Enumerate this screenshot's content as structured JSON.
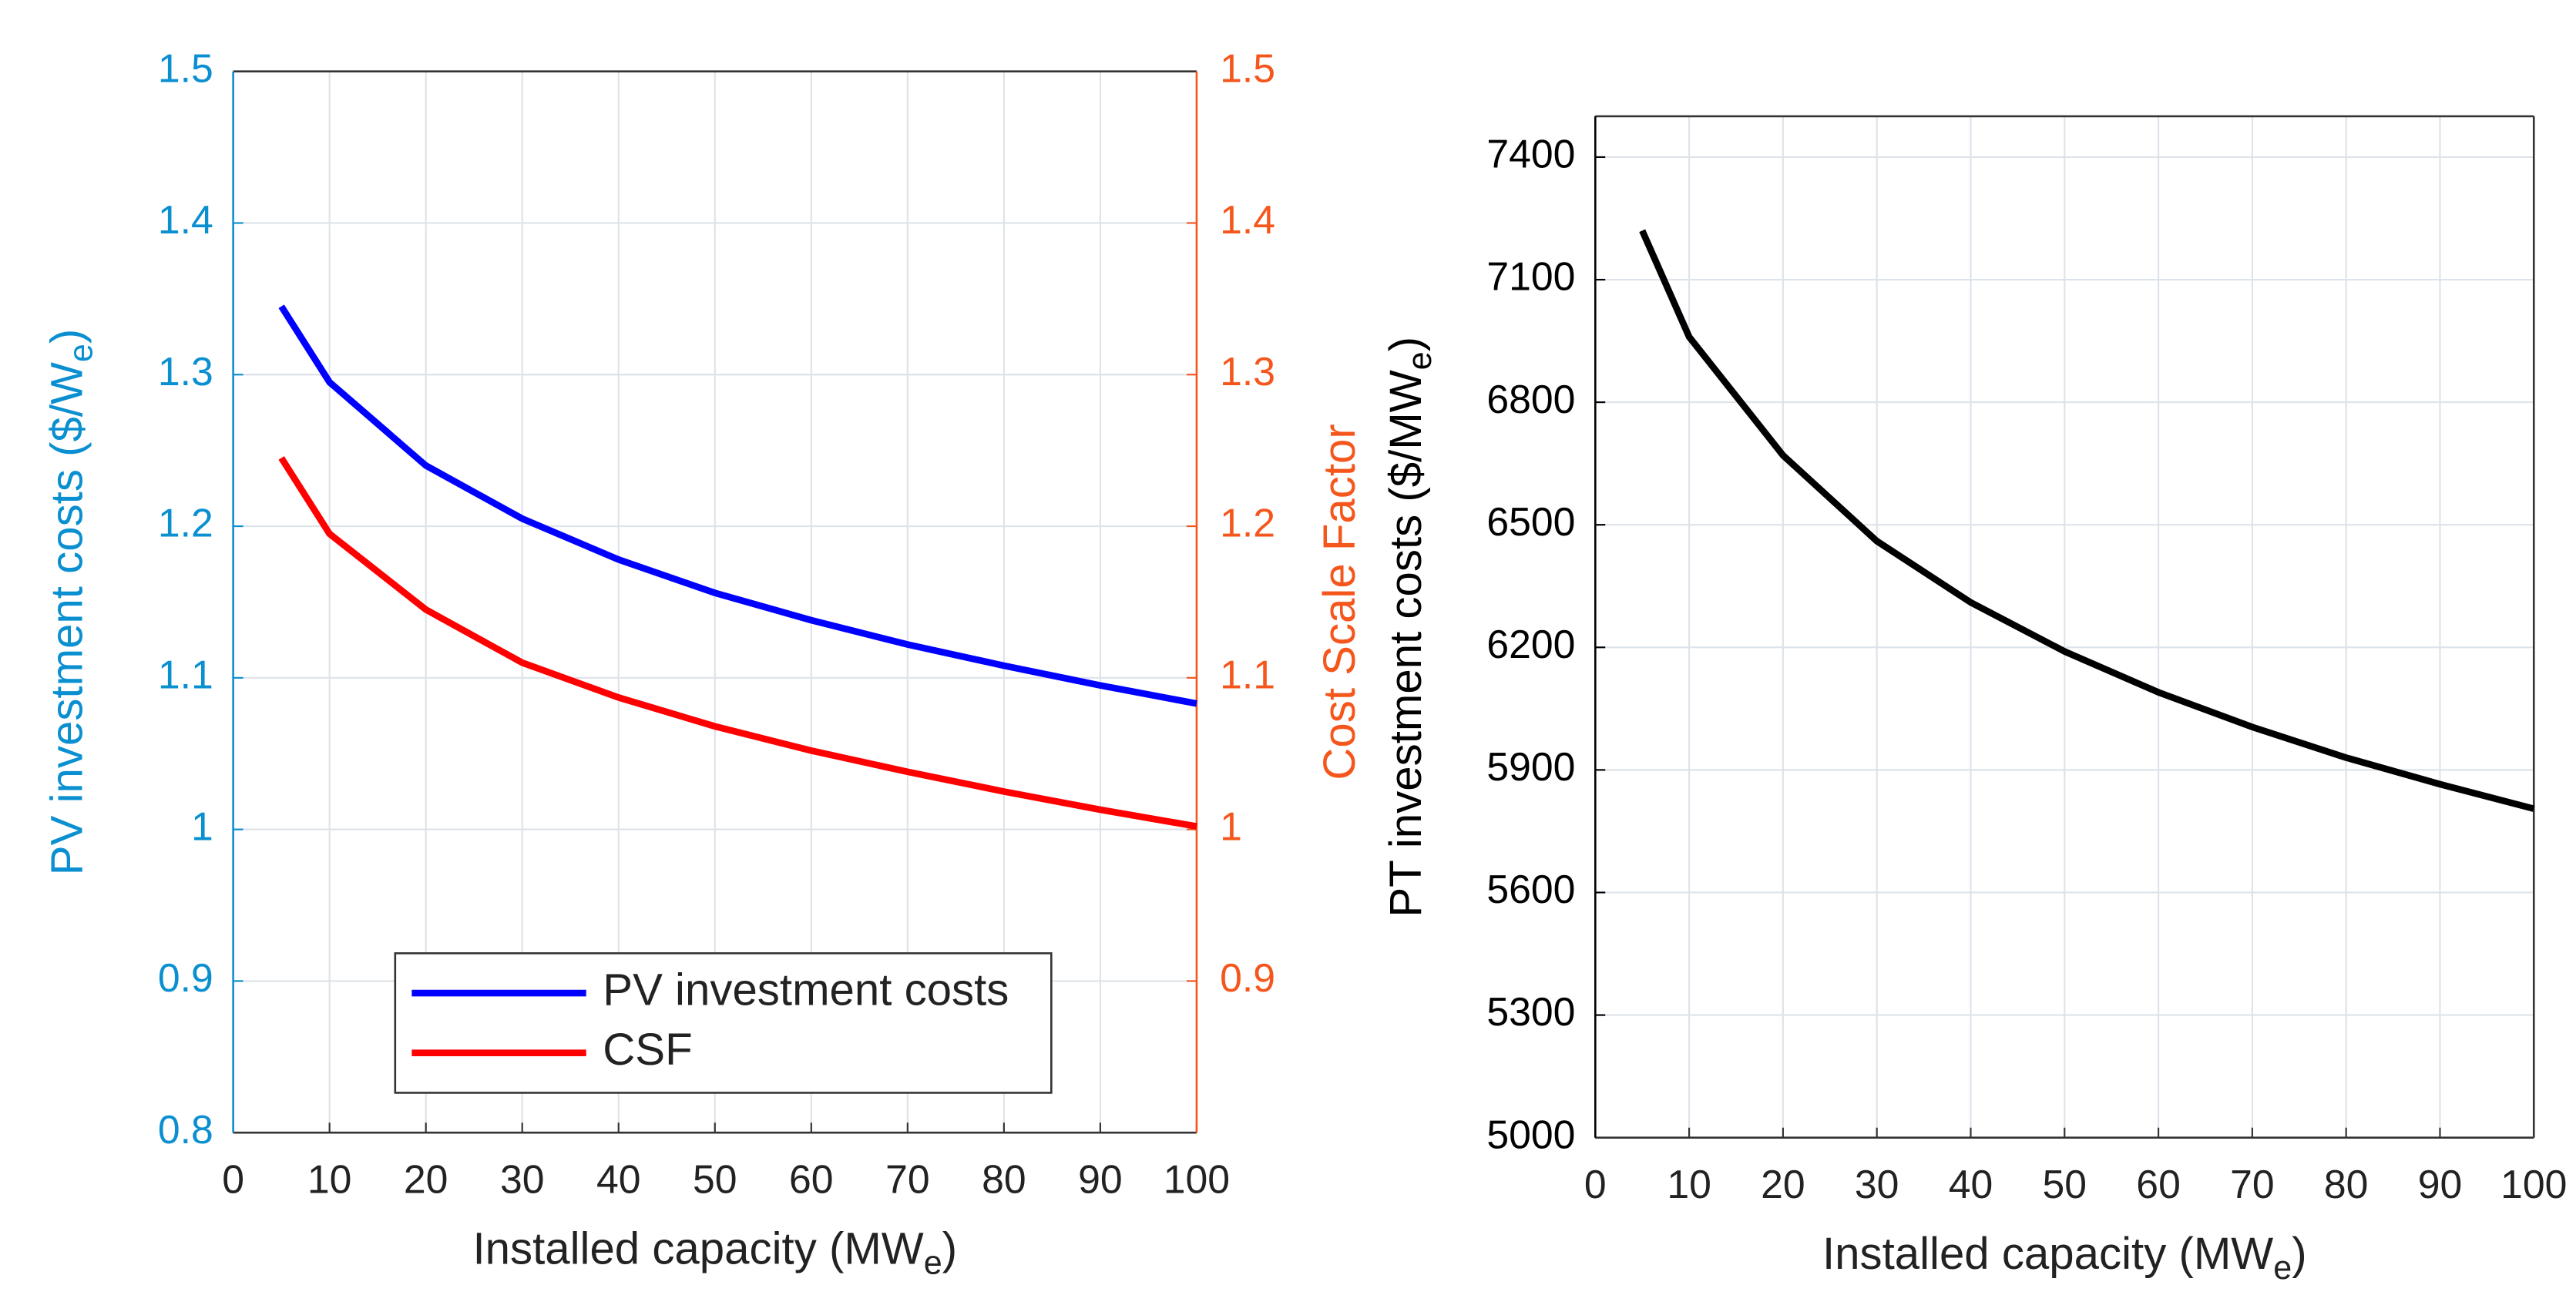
{
  "chart_data": [
    {
      "type": "line",
      "x": [
        5,
        10,
        20,
        30,
        40,
        50,
        60,
        70,
        80,
        90,
        100
      ],
      "xlabel": [
        "Installed capacity (MW",
        "e",
        ")"
      ],
      "ylabel": [
        "PV investment costs ($/W",
        "e",
        ")"
      ],
      "y2label": "Cost Scale Factor",
      "xlim": [
        0,
        100
      ],
      "xticks": [
        0,
        10,
        20,
        30,
        40,
        50,
        60,
        70,
        80,
        90,
        100
      ],
      "ylim": [
        0.8,
        1.5
      ],
      "yticks": [
        0.8,
        0.9,
        1,
        1.1,
        1.2,
        1.3,
        1.4,
        1.5
      ],
      "y2lim": [
        0.8,
        1.5
      ],
      "y2ticks": [
        0.9,
        1,
        1.1,
        1.2,
        1.3,
        1.4,
        1.5
      ],
      "ycolor": "#0a8fd0",
      "y2color": "#f5561c",
      "grid": true,
      "legend": "lower center",
      "series": [
        {
          "name": "PV investment costs",
          "color": "#0000ff",
          "values": [
            1.345,
            1.295,
            1.24,
            1.205,
            1.178,
            1.156,
            1.138,
            1.122,
            1.108,
            1.095,
            1.083
          ]
        },
        {
          "name": "CSF",
          "color": "#ff0000",
          "axis": "y2",
          "values": [
            1.245,
            1.195,
            1.145,
            1.11,
            1.087,
            1.068,
            1.052,
            1.038,
            1.025,
            1.013,
            1.002
          ]
        }
      ]
    },
    {
      "type": "line",
      "x": [
        5,
        10,
        20,
        30,
        40,
        50,
        60,
        70,
        80,
        90,
        100
      ],
      "xlabel": [
        "Installed capacity (MW",
        "e",
        ")"
      ],
      "ylabel": [
        "PT investment costs ($/MW",
        "e",
        ")"
      ],
      "xlim": [
        0,
        100
      ],
      "xticks": [
        0,
        10,
        20,
        30,
        40,
        50,
        60,
        70,
        80,
        90,
        100
      ],
      "ylim": [
        5000,
        7500
      ],
      "yticks": [
        5000,
        5300,
        5600,
        5900,
        6200,
        6500,
        6800,
        7100,
        7400
      ],
      "ycolor": "#000000",
      "grid": true,
      "series": [
        {
          "name": "PT",
          "color": "#000000",
          "values": [
            7220,
            6960,
            6670,
            6460,
            6310,
            6190,
            6090,
            6005,
            5930,
            5865,
            5805
          ]
        }
      ]
    }
  ]
}
